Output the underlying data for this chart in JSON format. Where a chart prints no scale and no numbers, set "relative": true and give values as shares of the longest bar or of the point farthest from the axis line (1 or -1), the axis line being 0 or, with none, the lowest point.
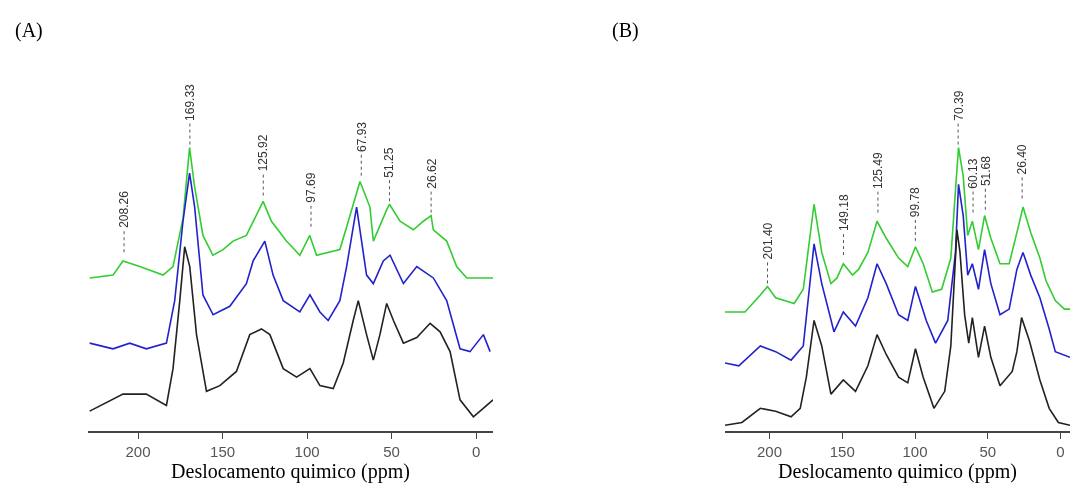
{
  "chart_data": [
    {
      "type": "line",
      "title": "(A)",
      "xlabel": "Deslocamento quimico (ppm)",
      "relative": true,
      "xlim": [
        229.6,
        -10
      ],
      "xticks": [
        200,
        150,
        100,
        50,
        0
      ],
      "grid": false,
      "series": [
        {
          "color": "#33cc33",
          "x": [
            228.6,
            214.8,
            208.9,
            199.0,
            185.2,
            179.3,
            173.4,
            169.5,
            166.5,
            161.6,
            155.7,
            149.7,
            143.8,
            135.9,
            126.0,
            121.1,
            112.2,
            104.3,
            98.4,
            94.4,
            80.6,
            76.6,
            68.7,
            62.8,
            60.8,
            52.9,
            51.25,
            45.0,
            37.1,
            31.2,
            26.62,
            25.3,
            17.4,
            11.5,
            5.5,
            -10
          ],
          "values": [
            0.54,
            0.55,
            0.6,
            0.58,
            0.55,
            0.58,
            0.75,
            1.0,
            0.86,
            0.69,
            0.62,
            0.64,
            0.67,
            0.69,
            0.81,
            0.74,
            0.67,
            0.62,
            0.69,
            0.62,
            0.64,
            0.72,
            0.88,
            0.79,
            0.67,
            0.78,
            0.8,
            0.74,
            0.71,
            0.74,
            0.76,
            0.71,
            0.67,
            0.58,
            0.54,
            0.54
          ]
        },
        {
          "color": "#2222cc",
          "x": [
            228.6,
            214.8,
            204.9,
            195.1,
            183.2,
            178.3,
            173.4,
            169.5,
            166.5,
            161.6,
            155.6,
            145.7,
            135.9,
            131.9,
            125.0,
            120.1,
            114.1,
            104.3,
            98.3,
            92.4,
            87.5,
            80.6,
            76.6,
            70.7,
            64.8,
            60.8,
            54.9,
            50.9,
            43.0,
            35.1,
            25.3,
            17.4,
            9.5,
            3.6,
            -4.3,
            -8.3
          ],
          "values": [
            0.31,
            0.29,
            0.31,
            0.29,
            0.31,
            0.46,
            0.74,
            0.91,
            0.79,
            0.48,
            0.41,
            0.44,
            0.52,
            0.6,
            0.67,
            0.55,
            0.46,
            0.42,
            0.48,
            0.42,
            0.39,
            0.46,
            0.58,
            0.79,
            0.55,
            0.52,
            0.6,
            0.62,
            0.52,
            0.58,
            0.54,
            0.46,
            0.29,
            0.28,
            0.34,
            0.28
          ]
        },
        {
          "color": "#222222",
          "x": [
            228.6,
            208.9,
            195.1,
            183.2,
            179.3,
            175.3,
            172.4,
            169.4,
            165.4,
            159.5,
            151.6,
            141.8,
            133.9,
            127.0,
            122.0,
            114.1,
            106.2,
            98.3,
            92.4,
            84.5,
            78.6,
            72.7,
            69.7,
            64.8,
            60.8,
            56.9,
            52.9,
            48.9,
            43.0,
            35.1,
            27.2,
            21.3,
            15.4,
            9.5,
            1.6,
            -10
          ],
          "values": [
            0.07,
            0.13,
            0.13,
            0.09,
            0.22,
            0.46,
            0.65,
            0.58,
            0.34,
            0.14,
            0.16,
            0.21,
            0.34,
            0.36,
            0.34,
            0.22,
            0.19,
            0.22,
            0.16,
            0.15,
            0.24,
            0.39,
            0.46,
            0.34,
            0.25,
            0.34,
            0.45,
            0.39,
            0.31,
            0.33,
            0.38,
            0.35,
            0.28,
            0.11,
            0.05,
            0.11
          ]
        }
      ],
      "annotations": [
        {
          "text": "208.26",
          "x": 208.26,
          "y": 0.62
        },
        {
          "text": "169.33",
          "x": 169.33,
          "y": 1.0
        },
        {
          "text": "125.92",
          "x": 125.92,
          "y": 0.82
        },
        {
          "text": "97.69",
          "x": 97.69,
          "y": 0.71
        },
        {
          "text": "67.93",
          "x": 67.93,
          "y": 0.89
        },
        {
          "text": "51.25",
          "x": 51.25,
          "y": 0.8
        },
        {
          "text": "26.62",
          "x": 26.62,
          "y": 0.76
        }
      ]
    },
    {
      "type": "line",
      "title": "(B)",
      "xlabel": "Deslocamento quimico (ppm)",
      "relative": true,
      "xlim": [
        230.6,
        -6.5
      ],
      "xticks": [
        200,
        150,
        100,
        50,
        0
      ],
      "grid": false,
      "series": [
        {
          "color": "#33cc33",
          "x": [
            230.6,
            216.9,
            206.3,
            201.4,
            195.8,
            183.1,
            176.8,
            169.4,
            164.1,
            157.8,
            153.6,
            149.3,
            143.0,
            138.8,
            132.4,
            126.1,
            119.8,
            111.3,
            105.0,
            99.7,
            94.4,
            88.1,
            81.7,
            75.4,
            72.2,
            70.1,
            66.9,
            63.8,
            60.6,
            56.4,
            52.2,
            47.9,
            41.6,
            35.3,
            30.0,
            25.8,
            20.5,
            14.2,
            10.0,
            3.6,
            -2.7,
            -6.5
          ],
          "values": [
            0.42,
            0.42,
            0.48,
            0.51,
            0.47,
            0.45,
            0.5,
            0.8,
            0.63,
            0.52,
            0.54,
            0.59,
            0.55,
            0.57,
            0.63,
            0.74,
            0.68,
            0.61,
            0.58,
            0.65,
            0.59,
            0.49,
            0.5,
            0.61,
            0.85,
            1.0,
            0.9,
            0.69,
            0.74,
            0.64,
            0.76,
            0.68,
            0.59,
            0.59,
            0.7,
            0.79,
            0.7,
            0.61,
            0.53,
            0.46,
            0.43,
            0.43
          ]
        },
        {
          "color": "#2222cc",
          "x": [
            230.6,
            221.1,
            206.3,
            195.8,
            185.2,
            176.8,
            169.4,
            164.1,
            155.7,
            149.3,
            140.9,
            132.4,
            126.1,
            119.8,
            111.3,
            105.0,
            99.7,
            92.3,
            85.9,
            77.5,
            72.2,
            70.1,
            66.9,
            63.8,
            60.6,
            56.4,
            52.2,
            47.9,
            41.6,
            35.3,
            30.0,
            25.8,
            20.5,
            14.2,
            7.8,
            3.6,
            -6.5
          ],
          "values": [
            0.24,
            0.23,
            0.3,
            0.28,
            0.25,
            0.3,
            0.66,
            0.52,
            0.35,
            0.42,
            0.37,
            0.47,
            0.59,
            0.52,
            0.41,
            0.39,
            0.51,
            0.39,
            0.31,
            0.39,
            0.63,
            0.87,
            0.76,
            0.55,
            0.59,
            0.5,
            0.64,
            0.52,
            0.41,
            0.43,
            0.57,
            0.63,
            0.55,
            0.47,
            0.36,
            0.28,
            0.26
          ]
        },
        {
          "color": "#222222",
          "x": [
            230.6,
            219.0,
            206.3,
            195.8,
            185.2,
            178.9,
            174.7,
            169.4,
            164.1,
            157.8,
            149.3,
            140.9,
            132.4,
            126.1,
            119.8,
            111.3,
            105.0,
            99.7,
            94.4,
            87.0,
            79.6,
            75.4,
            71.2,
            69.1,
            65.9,
            63.1,
            60.6,
            56.4,
            52.2,
            47.9,
            41.6,
            33.2,
            30.0,
            26.8,
            21.5,
            14.2,
            7.8,
            1.5,
            -6.5
          ],
          "values": [
            0.02,
            0.03,
            0.08,
            0.07,
            0.05,
            0.08,
            0.19,
            0.39,
            0.3,
            0.13,
            0.18,
            0.14,
            0.23,
            0.34,
            0.27,
            0.19,
            0.17,
            0.29,
            0.19,
            0.08,
            0.14,
            0.3,
            0.71,
            0.63,
            0.41,
            0.31,
            0.4,
            0.26,
            0.37,
            0.26,
            0.16,
            0.21,
            0.28,
            0.4,
            0.32,
            0.18,
            0.08,
            0.03,
            0.02
          ]
        }
      ],
      "annotations": [
        {
          "text": "201.40",
          "x": 201.4,
          "y": 0.51
        },
        {
          "text": "149.18",
          "x": 149.18,
          "y": 0.61
        },
        {
          "text": "125.49",
          "x": 125.49,
          "y": 0.76
        },
        {
          "text": "99.78",
          "x": 99.78,
          "y": 0.66
        },
        {
          "text": "70.39",
          "x": 70.39,
          "y": 1.0
        },
        {
          "text": "60.13",
          "x": 60.13,
          "y": 0.76
        },
        {
          "text": "51.68",
          "x": 51.68,
          "y": 0.77
        },
        {
          "text": "26.40",
          "x": 26.4,
          "y": 0.81
        }
      ]
    }
  ]
}
